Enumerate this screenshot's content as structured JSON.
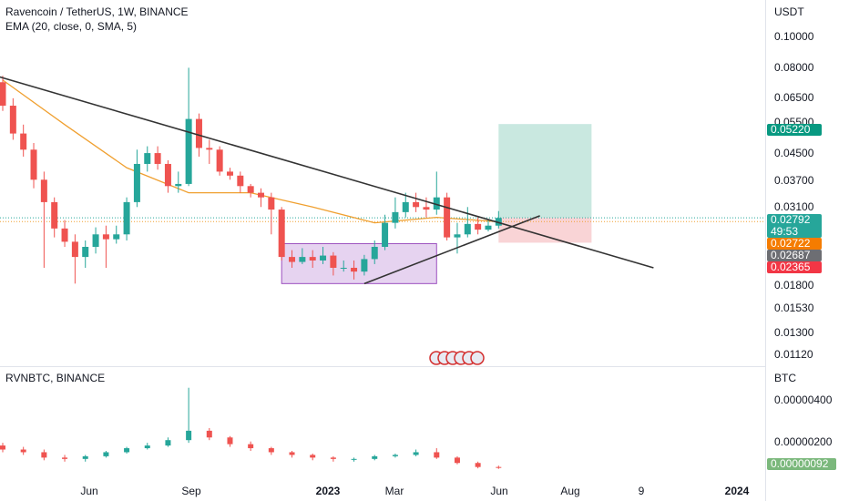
{
  "header": {
    "title": "Ravencoin / TetherUS, 1W, BINANCE",
    "indicator": "EMA (20, close, 0, SMA, 5)",
    "lower_title": "RVNBTC, BINANCE"
  },
  "price_axis": {
    "currency": "USDT",
    "ticks": [
      "0.10000",
      "0.08000",
      "0.06500",
      "0.05500",
      "0.04500",
      "0.03700",
      "0.03100",
      "0.01800",
      "0.01530",
      "0.01300",
      "0.01120"
    ]
  },
  "lower_axis": {
    "currency": "BTC",
    "ticks": [
      "0.00000400",
      "0.00000200"
    ]
  },
  "time_axis": {
    "labels": [
      "Jun",
      "Sep",
      "2023",
      "Mar",
      "Jun",
      "Aug",
      "9",
      "2024"
    ]
  },
  "tags": {
    "target": "0.05220",
    "current": "0.02792",
    "countdown": "49:53",
    "ema": "0.02722",
    "entry": "0.02687",
    "stop": "0.02365",
    "lower_current": "0.00000092"
  },
  "colors": {
    "up": "#26a69a",
    "down": "#ef5350",
    "ema": "#f0a030",
    "trendline": "#333333",
    "target_zone": "#b7e0d6",
    "stop_zone": "#f8c9cc",
    "box": "#e6d3f0",
    "box_border": "#9c4fbf",
    "ema_tag": "#f57c00",
    "entry_tag": "#6d6e73",
    "lower_tag": "#7bb87c"
  },
  "chart_data": [
    {
      "type": "candlestick",
      "title": "Ravencoin / TetherUS, 1W, BINANCE",
      "ylabel": "USDT",
      "scale": "log",
      "ylim": [
        0.0105,
        0.118
      ],
      "x": [
        "2022-04-25",
        "2022-05-02",
        "2022-05-09",
        "2022-05-16",
        "2022-05-23",
        "2022-05-30",
        "2022-06-06",
        "2022-06-13",
        "2022-06-20",
        "2022-06-27",
        "2022-07-04",
        "2022-07-11",
        "2022-07-18",
        "2022-07-25",
        "2022-08-01",
        "2022-08-08",
        "2022-08-15",
        "2022-08-22",
        "2022-08-29",
        "2022-09-05",
        "2022-09-12",
        "2022-09-19",
        "2022-09-26",
        "2022-10-03",
        "2022-10-10",
        "2022-10-17",
        "2022-10-24",
        "2022-10-31",
        "2022-11-07",
        "2022-11-14",
        "2022-11-21",
        "2022-11-28",
        "2022-12-05",
        "2022-12-12",
        "2022-12-19",
        "2022-12-26",
        "2023-01-02",
        "2023-01-09",
        "2023-01-16",
        "2023-01-23",
        "2023-01-30",
        "2023-02-06",
        "2023-02-13",
        "2023-02-20",
        "2023-02-27",
        "2023-03-06",
        "2023-03-13",
        "2023-03-20",
        "2023-03-27"
      ],
      "open": [
        0.069,
        0.059,
        0.049,
        0.044,
        0.036,
        0.031,
        0.026,
        0.0238,
        0.0215,
        0.023,
        0.025,
        0.0242,
        0.025,
        0.031,
        0.04,
        0.043,
        0.04,
        0.0345,
        0.035,
        0.054,
        0.0445,
        0.044,
        0.038,
        0.037,
        0.0345,
        0.033,
        0.032,
        0.0295,
        0.0215,
        0.0208,
        0.0215,
        0.021,
        0.0217,
        0.02,
        0.02,
        0.0195,
        0.0212,
        0.023,
        0.027,
        0.029,
        0.031,
        0.03,
        0.0295,
        0.032,
        0.0245,
        0.025,
        0.0268,
        0.0258,
        0.0265
      ],
      "close": [
        0.059,
        0.049,
        0.044,
        0.036,
        0.031,
        0.026,
        0.0238,
        0.0215,
        0.023,
        0.025,
        0.0242,
        0.025,
        0.031,
        0.04,
        0.043,
        0.04,
        0.0345,
        0.035,
        0.054,
        0.0445,
        0.044,
        0.038,
        0.037,
        0.0345,
        0.033,
        0.032,
        0.0295,
        0.0215,
        0.0208,
        0.0215,
        0.021,
        0.0217,
        0.02,
        0.02,
        0.0195,
        0.0212,
        0.023,
        0.027,
        0.029,
        0.031,
        0.03,
        0.0295,
        0.032,
        0.0245,
        0.025,
        0.0268,
        0.0258,
        0.0265,
        0.0279
      ],
      "high": [
        0.072,
        0.062,
        0.052,
        0.046,
        0.038,
        0.032,
        0.0275,
        0.025,
        0.024,
        0.0262,
        0.0265,
        0.0265,
        0.032,
        0.044,
        0.045,
        0.045,
        0.041,
        0.038,
        0.076,
        0.056,
        0.047,
        0.045,
        0.039,
        0.038,
        0.035,
        0.034,
        0.033,
        0.03,
        0.0225,
        0.0228,
        0.0225,
        0.023,
        0.0222,
        0.021,
        0.021,
        0.0218,
        0.024,
        0.0285,
        0.032,
        0.033,
        0.033,
        0.032,
        0.038,
        0.033,
        0.027,
        0.03,
        0.028,
        0.0275,
        0.0292
      ],
      "low": [
        0.057,
        0.047,
        0.042,
        0.034,
        0.02,
        0.0245,
        0.023,
        0.018,
        0.02,
        0.022,
        0.02,
        0.0235,
        0.024,
        0.03,
        0.038,
        0.0385,
        0.033,
        0.033,
        0.0345,
        0.042,
        0.04,
        0.037,
        0.036,
        0.033,
        0.032,
        0.03,
        0.025,
        0.021,
        0.02,
        0.0205,
        0.02,
        0.0205,
        0.019,
        0.0195,
        0.0185,
        0.019,
        0.0205,
        0.0225,
        0.026,
        0.028,
        0.029,
        0.028,
        0.0285,
        0.024,
        0.022,
        0.0245,
        0.025,
        0.0255,
        0.026
      ],
      "ema_x": [
        "2022-04-25",
        "2022-06-06",
        "2022-07-18",
        "2022-08-29",
        "2022-10-10",
        "2022-11-21",
        "2023-01-02",
        "2023-02-13",
        "2023-03-27"
      ],
      "ema": [
        0.07,
        0.052,
        0.039,
        0.033,
        0.033,
        0.03,
        0.027,
        0.028,
        0.0272
      ],
      "annotations": [
        {
          "type": "trendline",
          "from": [
            "2022-03-28",
            0.077
          ],
          "to": [
            "2023-07-10",
            0.02
          ]
        },
        {
          "type": "trendline",
          "from": [
            "2022-12-26",
            0.018
          ],
          "to": [
            "2023-04-24",
            0.0283
          ]
        },
        {
          "type": "rectangle",
          "from": [
            "2022-10-31",
            0.0235
          ],
          "to": [
            "2023-02-13",
            0.018
          ]
        },
        {
          "type": "long_position",
          "from": "2023-03-27",
          "to": "2023-05-29",
          "entry": 0.02792,
          "target": 0.0522,
          "stop": 0.02365
        }
      ]
    },
    {
      "type": "candlestick",
      "title": "RVNBTC, BINANCE",
      "ylabel": "BTC",
      "ylim": [
        6e-07,
        4.5e-06
      ],
      "x": [
        "2022-04-25",
        "2022-05-09",
        "2022-05-23",
        "2022-06-06",
        "2022-06-20",
        "2022-07-04",
        "2022-07-18",
        "2022-08-01",
        "2022-08-15",
        "2022-08-29",
        "2022-09-12",
        "2022-09-26",
        "2022-10-10",
        "2022-10-24",
        "2022-11-07",
        "2022-11-21",
        "2022-12-05",
        "2022-12-19",
        "2023-01-02",
        "2023-01-16",
        "2023-01-30",
        "2023-02-13",
        "2023-02-27",
        "2023-03-13",
        "2023-03-27"
      ],
      "open": [
        1.75e-06,
        1.6e-06,
        1.5e-06,
        1.3e-06,
        1.25e-06,
        1.35e-06,
        1.5e-06,
        1.65e-06,
        1.75e-06,
        1.95e-06,
        2.3e-06,
        2.05e-06,
        1.8e-06,
        1.65e-06,
        1.5e-06,
        1.4e-06,
        1.3e-06,
        1.25e-06,
        1.25e-06,
        1.35e-06,
        1.4e-06,
        1.5e-06,
        1.3e-06,
        1.1e-06,
        9.5e-07
      ],
      "close": [
        1.6e-06,
        1.5e-06,
        1.3e-06,
        1.25e-06,
        1.35e-06,
        1.5e-06,
        1.65e-06,
        1.75e-06,
        1.95e-06,
        2.3e-06,
        2.05e-06,
        1.8e-06,
        1.65e-06,
        1.5e-06,
        1.4e-06,
        1.3e-06,
        1.25e-06,
        1.25e-06,
        1.35e-06,
        1.4e-06,
        1.5e-06,
        1.3e-06,
        1.1e-06,
        9.5e-07,
        9.2e-07
      ],
      "high": [
        1.85e-06,
        1.7e-06,
        1.6e-06,
        1.4e-06,
        1.4e-06,
        1.55e-06,
        1.7e-06,
        1.85e-06,
        2.05e-06,
        3.9e-06,
        2.4e-06,
        2.1e-06,
        1.9e-06,
        1.7e-06,
        1.55e-06,
        1.45e-06,
        1.35e-06,
        1.3e-06,
        1.4e-06,
        1.45e-06,
        1.6e-06,
        1.65e-06,
        1.35e-06,
        1.15e-06,
        1e-06
      ],
      "low": [
        1.5e-06,
        1.4e-06,
        1.2e-06,
        1.15e-06,
        1.15e-06,
        1.3e-06,
        1.45e-06,
        1.6e-06,
        1.7e-06,
        1.85e-06,
        1.95e-06,
        1.7e-06,
        1.55e-06,
        1.4e-06,
        1.3e-06,
        1.2e-06,
        1.15e-06,
        1.15e-06,
        1.2e-06,
        1.3e-06,
        1.35e-06,
        1.25e-06,
        1.05e-06,
        9e-07,
        8.8e-07
      ]
    }
  ]
}
